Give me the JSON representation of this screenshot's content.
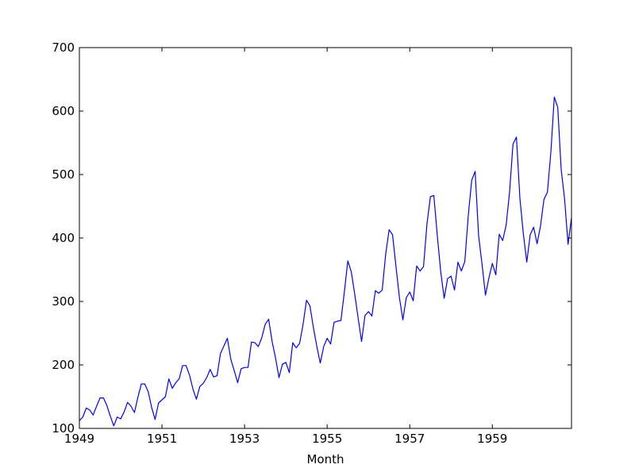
{
  "chart_data": {
    "type": "line",
    "title": "",
    "xlabel": "Month",
    "ylabel": "",
    "xlim": [
      "1949-01",
      "1960-12"
    ],
    "ylim": [
      100,
      700
    ],
    "grid": false,
    "x_ticks": [
      "1949",
      "1951",
      "1953",
      "1955",
      "1957",
      "1959"
    ],
    "y_ticks": [
      "100",
      "200",
      "300",
      "400",
      "500",
      "600",
      "700"
    ],
    "line_color": "#0000ff",
    "series": [
      {
        "name": "",
        "x": [
          "1949-01",
          "1949-02",
          "1949-03",
          "1949-04",
          "1949-05",
          "1949-06",
          "1949-07",
          "1949-08",
          "1949-09",
          "1949-10",
          "1949-11",
          "1949-12",
          "1950-01",
          "1950-02",
          "1950-03",
          "1950-04",
          "1950-05",
          "1950-06",
          "1950-07",
          "1950-08",
          "1950-09",
          "1950-10",
          "1950-11",
          "1950-12",
          "1951-01",
          "1951-02",
          "1951-03",
          "1951-04",
          "1951-05",
          "1951-06",
          "1951-07",
          "1951-08",
          "1951-09",
          "1951-10",
          "1951-11",
          "1951-12",
          "1952-01",
          "1952-02",
          "1952-03",
          "1952-04",
          "1952-05",
          "1952-06",
          "1952-07",
          "1952-08",
          "1952-09",
          "1952-10",
          "1952-11",
          "1952-12",
          "1953-01",
          "1953-02",
          "1953-03",
          "1953-04",
          "1953-05",
          "1953-06",
          "1953-07",
          "1953-08",
          "1953-09",
          "1953-10",
          "1953-11",
          "1953-12",
          "1954-01",
          "1954-02",
          "1954-03",
          "1954-04",
          "1954-05",
          "1954-06",
          "1954-07",
          "1954-08",
          "1954-09",
          "1954-10",
          "1954-11",
          "1954-12",
          "1955-01",
          "1955-02",
          "1955-03",
          "1955-04",
          "1955-05",
          "1955-06",
          "1955-07",
          "1955-08",
          "1955-09",
          "1955-10",
          "1955-11",
          "1955-12",
          "1956-01",
          "1956-02",
          "1956-03",
          "1956-04",
          "1956-05",
          "1956-06",
          "1956-07",
          "1956-08",
          "1956-09",
          "1956-10",
          "1956-11",
          "1956-12",
          "1957-01",
          "1957-02",
          "1957-03",
          "1957-04",
          "1957-05",
          "1957-06",
          "1957-07",
          "1957-08",
          "1957-09",
          "1957-10",
          "1957-11",
          "1957-12",
          "1958-01",
          "1958-02",
          "1958-03",
          "1958-04",
          "1958-05",
          "1958-06",
          "1958-07",
          "1958-08",
          "1958-09",
          "1958-10",
          "1958-11",
          "1958-12",
          "1959-01",
          "1959-02",
          "1959-03",
          "1959-04",
          "1959-05",
          "1959-06",
          "1959-07",
          "1959-08",
          "1959-09",
          "1959-10",
          "1959-11",
          "1959-12",
          "1960-01",
          "1960-02",
          "1960-03",
          "1960-04",
          "1960-05",
          "1960-06",
          "1960-07",
          "1960-08",
          "1960-09",
          "1960-10",
          "1960-11",
          "1960-12"
        ],
        "values": [
          112,
          118,
          132,
          129,
          121,
          135,
          148,
          148,
          136,
          119,
          104,
          118,
          115,
          126,
          141,
          135,
          125,
          149,
          170,
          170,
          158,
          133,
          114,
          140,
          145,
          150,
          178,
          163,
          172,
          178,
          199,
          199,
          184,
          162,
          146,
          166,
          171,
          180,
          193,
          181,
          183,
          218,
          230,
          242,
          209,
          191,
          172,
          194,
          196,
          196,
          236,
          235,
          229,
          243,
          264,
          272,
          237,
          211,
          180,
          201,
          204,
          188,
          235,
          227,
          234,
          264,
          302,
          293,
          259,
          229,
          203,
          229,
          242,
          233,
          267,
          269,
          270,
          315,
          364,
          347,
          312,
          274,
          237,
          278,
          284,
          277,
          317,
          313,
          318,
          374,
          413,
          405,
          355,
          306,
          271,
          306,
          315,
          301,
          356,
          348,
          355,
          422,
          465,
          467,
          404,
          347,
          305,
          336,
          340,
          318,
          362,
          348,
          363,
          435,
          491,
          505,
          404,
          359,
          310,
          337,
          360,
          342,
          406,
          396,
          420,
          472,
          548,
          559,
          463,
          407,
          362,
          405,
          417,
          391,
          419,
          461,
          472,
          535,
          622,
          606,
          508,
          461,
          390,
          432
        ]
      }
    ]
  }
}
